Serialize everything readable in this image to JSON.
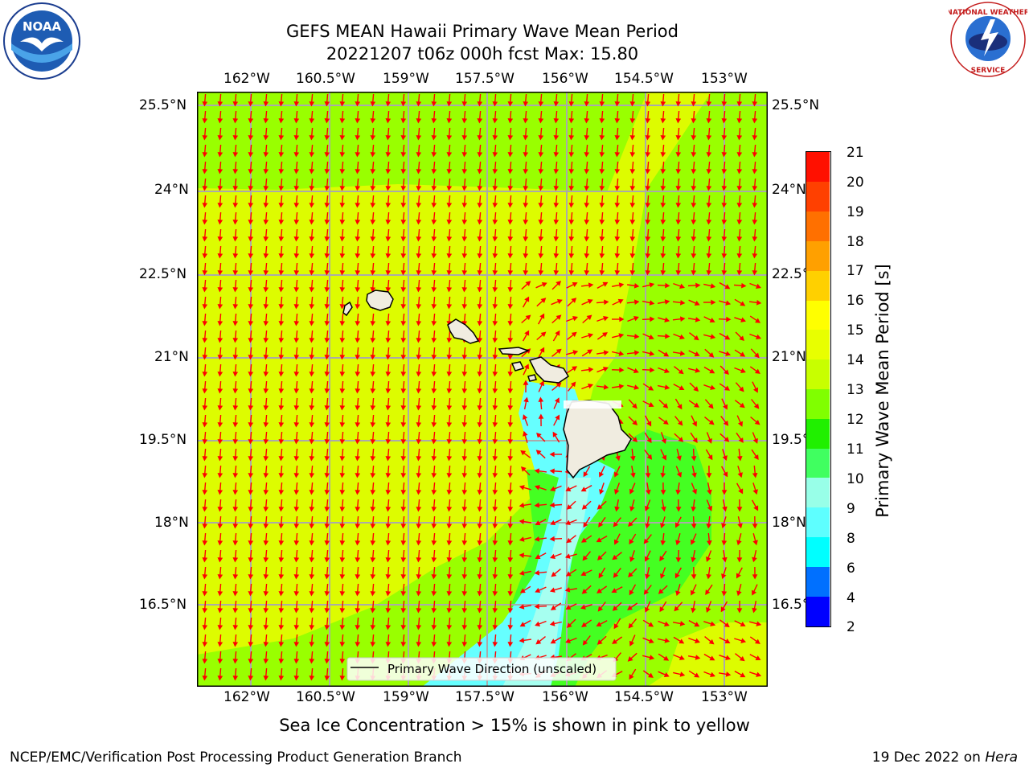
{
  "title": {
    "line1": "GEFS MEAN Hawaii Primary Wave Mean Period",
    "line2": "20221207 t06z 000h fcst   Max: 15.80"
  },
  "logos": {
    "left": {
      "icon": "noaa-logo",
      "text": "NOAA"
    },
    "right": {
      "icon": "national-weather-service-logo",
      "text": "NATIONAL WEATHER SERVICE"
    }
  },
  "axes": {
    "lon_labels": [
      "162°W",
      "160.5°W",
      "159°W",
      "157.5°W",
      "156°W",
      "154.5°W",
      "153°W"
    ],
    "lat_labels": [
      "25.5°N",
      "24°N",
      "22.5°N",
      "21°N",
      "19.5°N",
      "18°N",
      "16.5°N"
    ]
  },
  "legend": {
    "label": "Primary Wave Direction (unscaled)"
  },
  "colorbar": {
    "label": "Primary Wave Mean Period [s]",
    "ticks": [
      "21",
      "20",
      "19",
      "18",
      "17",
      "16",
      "15",
      "14",
      "13",
      "12",
      "11",
      "10",
      "9",
      "8",
      "6",
      "4",
      "2"
    ],
    "levels": [
      2,
      4,
      6,
      8,
      9,
      10,
      11,
      12,
      13,
      14,
      15,
      16,
      17,
      18,
      19,
      20,
      21
    ],
    "colors": [
      "#0000ff",
      "#0070ff",
      "#00ffff",
      "#5effff",
      "#98ffe8",
      "#40ff60",
      "#20f000",
      "#80ff00",
      "#c8ff00",
      "#e8ff00",
      "#ffff00",
      "#ffd000",
      "#ffa000",
      "#ff7000",
      "#ff4000",
      "#ff1000"
    ]
  },
  "note": "Sea Ice Concentration > 15% is shown in pink to yellow",
  "footer": {
    "left": "NCEP/EMC/Verification Post Processing Product Generation Branch",
    "right_prefix": "19 Dec 2022 on ",
    "right_host": "Hera"
  },
  "colors": {
    "yellow_field": "#ddfc00",
    "green_field": "#99ff00",
    "dark_green_field": "#44ff22",
    "cyan_field": "#66ffff",
    "light_cyan_field": "#a6fff0",
    "arrow": "#ff0000",
    "grid": "#aaaaaa",
    "land": "#f0ece0"
  }
}
